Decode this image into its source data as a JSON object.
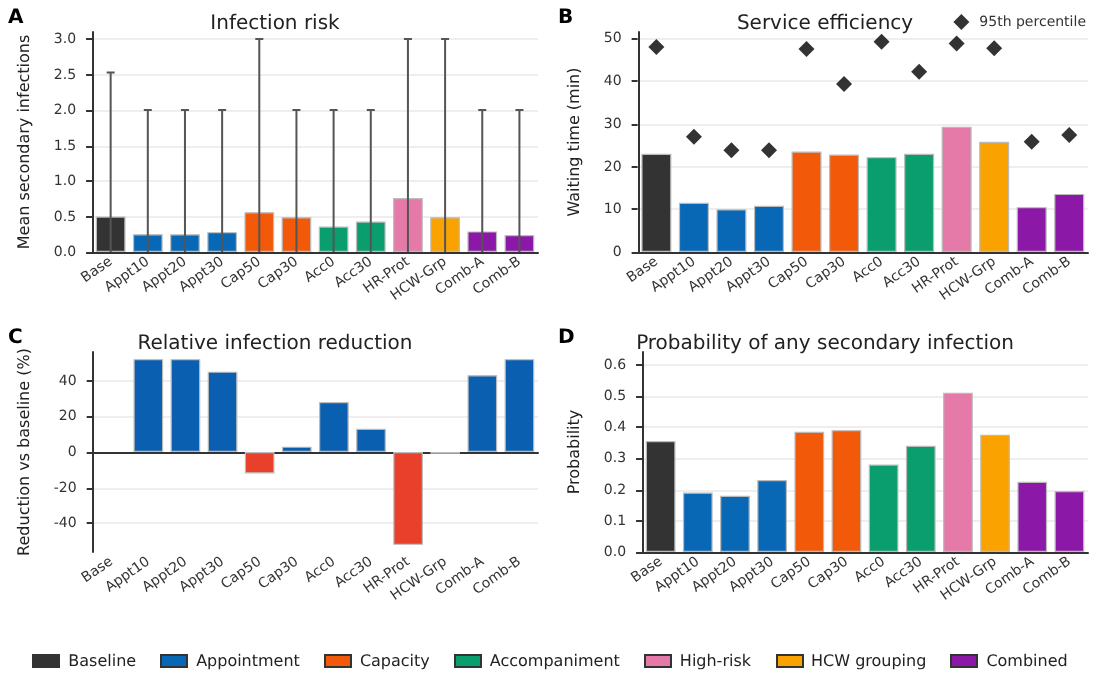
{
  "chart_data": [
    {
      "type": "bar",
      "title": "Infection risk",
      "annotations": [
        "A"
      ],
      "ylabel": "Mean secondary infections",
      "categories": [
        "Base",
        "Appt10",
        "Appt20",
        "Appt30",
        "Cap50",
        "Cap30",
        "Acc0",
        "Acc30",
        "HR-Prot",
        "HCW-Grp",
        "Comb-A",
        "Comb-B"
      ],
      "stacked": true,
      "series": [
        {
          "name": "Baseline",
          "color": "#333333",
          "values": [
            0.5,
            null,
            null,
            null,
            null,
            null,
            null,
            null,
            null,
            null,
            null,
            null
          ],
          "errors": [
            [
              0,
              2.53
            ],
            null,
            null,
            null,
            null,
            null,
            null,
            null,
            null,
            null,
            null,
            null
          ]
        },
        {
          "name": "Appointment",
          "color": "#0868b5",
          "values": [
            null,
            0.25,
            0.25,
            0.28,
            null,
            null,
            null,
            null,
            null,
            null,
            null,
            null
          ],
          "errors": [
            null,
            [
              0,
              2
            ],
            [
              0,
              2
            ],
            [
              0,
              2
            ],
            null,
            null,
            null,
            null,
            null,
            null,
            null,
            null
          ]
        },
        {
          "name": "Capacity",
          "color": "#f25a0a",
          "values": [
            null,
            null,
            null,
            null,
            0.56,
            0.49,
            null,
            null,
            null,
            null,
            null,
            null
          ],
          "errors": [
            null,
            null,
            null,
            null,
            [
              0,
              3
            ],
            [
              0,
              2
            ],
            null,
            null,
            null,
            null,
            null,
            null
          ]
        },
        {
          "name": "Accompaniment",
          "color": "#0a9e6e",
          "values": [
            null,
            null,
            null,
            null,
            null,
            null,
            0.36,
            0.43,
            null,
            null,
            null,
            null
          ],
          "errors": [
            null,
            null,
            null,
            null,
            null,
            null,
            [
              0,
              2
            ],
            [
              0,
              2
            ],
            null,
            null,
            null,
            null
          ]
        },
        {
          "name": "High-risk",
          "color": "#e57aa8",
          "values": [
            null,
            null,
            null,
            null,
            null,
            null,
            null,
            null,
            0.76,
            null,
            null,
            null
          ],
          "errors": [
            null,
            null,
            null,
            null,
            null,
            null,
            null,
            null,
            [
              0,
              3
            ],
            null,
            null,
            null
          ]
        },
        {
          "name": "HCW grouping",
          "color": "#f9a200",
          "values": [
            null,
            null,
            null,
            null,
            null,
            null,
            null,
            null,
            null,
            0.49,
            null,
            null
          ],
          "errors": [
            null,
            null,
            null,
            null,
            null,
            null,
            null,
            null,
            null,
            [
              0,
              3
            ],
            null,
            null
          ]
        },
        {
          "name": "Combined",
          "color": "#8b18a6",
          "values": [
            null,
            null,
            null,
            null,
            null,
            null,
            null,
            null,
            null,
            null,
            0.29,
            0.24
          ],
          "errors": [
            null,
            null,
            null,
            null,
            null,
            null,
            null,
            null,
            null,
            null,
            [
              0,
              2
            ],
            [
              0,
              2
            ]
          ]
        }
      ],
      "ylim": [
        0,
        3.1
      ],
      "yticks": [
        {
          "value": 0,
          "label": "0.0"
        },
        0.5,
        {
          "value": 1,
          "label": "1.0"
        },
        1.5,
        {
          "value": 2,
          "label": "2.0"
        },
        2.5,
        {
          "value": 3,
          "label": "3.0"
        }
      ],
      "grid": "y",
      "legend": "bottom"
    },
    {
      "type": "bar",
      "title": "Service efficiency",
      "annotations": [
        "B"
      ],
      "ylabel": "Waiting time (min)",
      "categories": [
        "Base",
        "Appt10",
        "Appt20",
        "Appt30",
        "Cap50",
        "Cap30",
        "Acc0",
        "Acc30",
        "HR-Prot",
        "HCW-Grp",
        "Comb-A",
        "Comb-B"
      ],
      "series": [
        {
          "values": [
            23,
            11.5,
            10,
            10.8,
            23.5,
            22.8,
            22.2,
            23,
            29.3,
            25.8,
            10.5,
            13.6
          ],
          "colors": [
            "#333333",
            "#0868b5",
            "#0868b5",
            "#0868b5",
            "#f25a0a",
            "#f25a0a",
            "#0a9e6e",
            "#0a9e6e",
            "#e57aa8",
            "#f9a200",
            "#8b18a6",
            "#8b18a6"
          ]
        },
        {
          "type": "scatter",
          "name": "95th percentile",
          "color": "#000000",
          "marker": "diamond",
          "x": [
            "Base",
            "Appt10",
            "Appt20",
            "Appt30",
            "Cap50",
            "Cap30",
            "Acc0",
            "Acc30",
            "HR-Prot",
            "HCW-Grp",
            "Comb-A",
            "Comb-B"
          ],
          "values": [
            48,
            27,
            23.8,
            23.8,
            47.5,
            39.3,
            49.2,
            42.2,
            48.8,
            47.7,
            25.8,
            27.4
          ]
        }
      ],
      "ylim": [
        0,
        51.5
      ],
      "yticks": [
        0,
        10,
        20,
        30,
        40,
        50
      ],
      "grid": "y",
      "legend": "top right"
    },
    {
      "type": "bar",
      "title": "Relative infection reduction",
      "annotations": [
        "C"
      ],
      "ylabel": "Reduction vs baseline (%)",
      "categories": [
        "Base",
        "Appt10",
        "Appt20",
        "Appt30",
        "Cap50",
        "Cap30",
        "Acc0",
        "Acc30",
        "HR-Prot",
        "HCW-Grp",
        "Comb-A",
        "Comb-B"
      ],
      "values": [
        0,
        52,
        52,
        45,
        -12,
        3,
        28,
        13,
        -52,
        -1,
        43,
        52
      ],
      "colors": [
        "#0b5fb0",
        "#0b5fb0",
        "#0b5fb0",
        "#0b5fb0",
        "#e8402a",
        "#0b5fb0",
        "#0b5fb0",
        "#0b5fb0",
        "#e8402a",
        "#e8402a",
        "#0b5fb0",
        "#0b5fb0"
      ],
      "ylim": [
        -56,
        56
      ],
      "yticks": [
        -40,
        -20,
        0,
        20,
        40
      ],
      "grid": "y"
    },
    {
      "type": "bar",
      "title": "Probability of any secondary infection",
      "annotations": [
        "D"
      ],
      "ylabel": "Probability",
      "categories": [
        "Base",
        "Appt10",
        "Appt20",
        "Appt30",
        "Cap50",
        "Cap30",
        "Acc0",
        "Acc30",
        "HR-Prot",
        "HCW-Grp",
        "Comb-A",
        "Comb-B"
      ],
      "values": [
        0.355,
        0.19,
        0.18,
        0.23,
        0.385,
        0.39,
        0.28,
        0.34,
        0.51,
        0.375,
        0.225,
        0.195
      ],
      "colors": [
        "#333333",
        "#0868b5",
        "#0868b5",
        "#0868b5",
        "#f25a0a",
        "#f25a0a",
        "#0a9e6e",
        "#0a9e6e",
        "#e57aa8",
        "#f9a200",
        "#8b18a6",
        "#8b18a6"
      ],
      "ylim": [
        0,
        0.64
      ],
      "yticks": [
        {
          "value": 0,
          "label": "0.0"
        },
        0.1,
        0.2,
        0.3,
        0.4,
        0.5,
        0.6
      ],
      "grid": "y"
    }
  ]
}
